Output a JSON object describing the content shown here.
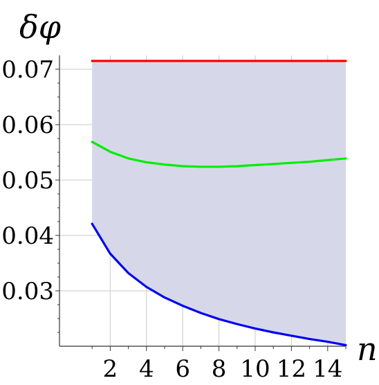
{
  "chart_data": {
    "type": "area",
    "xlabel": "n",
    "ylabel": "δφ",
    "xlim": [
      -0.8,
      15
    ],
    "ylim": [
      0.02,
      0.0725
    ],
    "xticks": [
      2,
      4,
      6,
      8,
      10,
      12,
      14
    ],
    "xtick_labels": [
      "2",
      "4",
      "6",
      "8",
      "10",
      "12",
      "14"
    ],
    "yticks": [
      0.03,
      0.04,
      0.05,
      0.06,
      0.07
    ],
    "ytick_labels": [
      "0.03",
      "0.04",
      "0.05",
      "0.06",
      "0.07"
    ],
    "grid": true,
    "legend": "none",
    "x": [
      1,
      2,
      3,
      4,
      5,
      6,
      7,
      8,
      9,
      10,
      11,
      12,
      13,
      14,
      15
    ],
    "series": [
      {
        "color": "#ff0000",
        "values": [
          0.0715,
          0.0715,
          0.0715,
          0.0715,
          0.0715,
          0.0715,
          0.0715,
          0.0715,
          0.0715,
          0.0715,
          0.0715,
          0.0715,
          0.0715,
          0.0715,
          0.0715
        ]
      },
      {
        "color": "#00ee00",
        "values": [
          0.0569,
          0.0551,
          0.0539,
          0.0532,
          0.0528,
          0.0525,
          0.0524,
          0.0524,
          0.0525,
          0.0527,
          0.0529,
          0.0531,
          0.0533,
          0.0536,
          0.0539
        ]
      },
      {
        "color": "#0000ee",
        "values": [
          0.0421,
          0.0367,
          0.0332,
          0.0307,
          0.0288,
          0.0273,
          0.026,
          0.0249,
          0.024,
          0.0232,
          0.0225,
          0.0219,
          0.0213,
          0.0208,
          0.0202
        ]
      }
    ],
    "fill": {
      "color": "#d6d8ea",
      "between": [
        "blue",
        "red"
      ]
    }
  }
}
